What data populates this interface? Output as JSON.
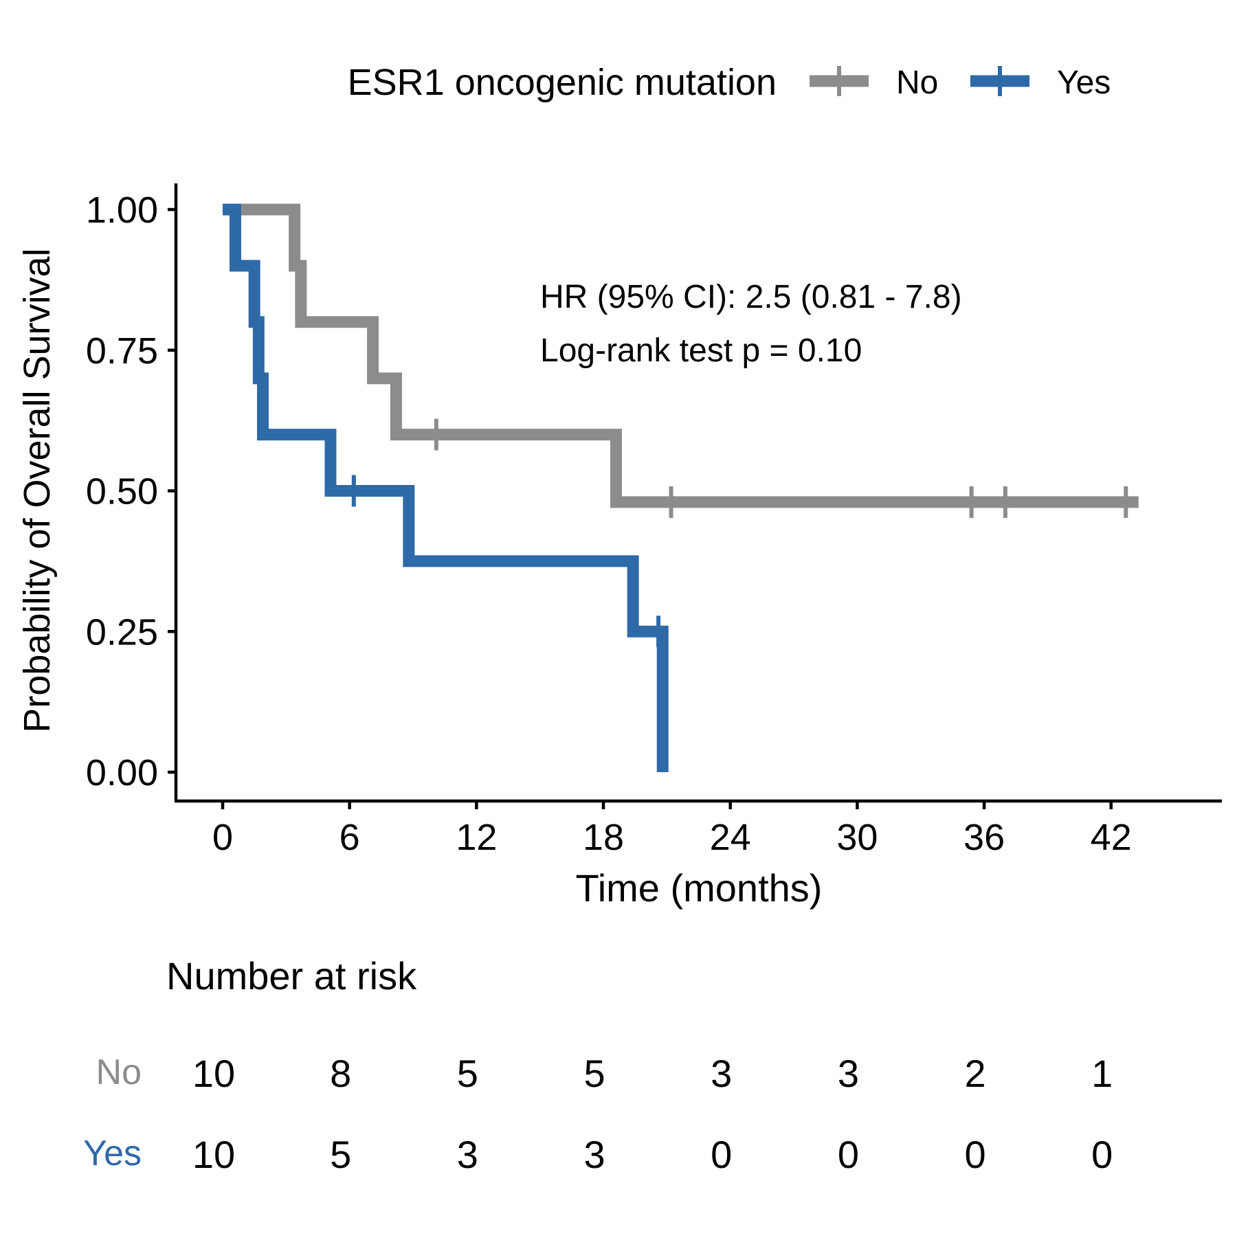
{
  "chart_data": {
    "type": "line",
    "subtype": "kaplan-meier",
    "title": "",
    "legend": {
      "title": "ESR1 oncogenic mutation",
      "position": "top",
      "entries": [
        "No",
        "Yes"
      ]
    },
    "xlabel": "Time (months)",
    "ylabel": "Probability of Overall Survival",
    "xlim": [
      -4.4,
      47.2
    ],
    "ylim": [
      -0.05,
      1.05
    ],
    "xticks": [
      0,
      6,
      12,
      18,
      24,
      30,
      36,
      42
    ],
    "xtick_labels": [
      "0",
      "6",
      "12",
      "18",
      "24",
      "30",
      "36",
      "42"
    ],
    "yticks": [
      0,
      0.25,
      0.5,
      0.75,
      1.0
    ],
    "ytick_labels": [
      "0.00",
      "0.25",
      "0.50",
      "0.75",
      "1.00"
    ],
    "grid": false,
    "annotations": [
      "HR (95% CI): 2.5 (0.81 - 7.8)",
      "Log-rank test p = 0.10"
    ],
    "series": [
      {
        "name": "No",
        "color": "#8c8c8c",
        "steps": [
          [
            0,
            1.0
          ],
          [
            3.4,
            0.9
          ],
          [
            3.7,
            0.8
          ],
          [
            7.1,
            0.7
          ],
          [
            8.2,
            0.6
          ],
          [
            18.6,
            0.48
          ],
          [
            43.3,
            0.48
          ]
        ],
        "censored": [
          [
            10.1,
            0.6
          ],
          [
            21.2,
            0.48
          ],
          [
            35.4,
            0.48
          ],
          [
            37.0,
            0.48
          ],
          [
            42.7,
            0.48
          ]
        ]
      },
      {
        "name": "Yes",
        "color": "#2e69a8",
        "steps": [
          [
            0,
            1.0
          ],
          [
            0.6,
            0.9
          ],
          [
            1.5,
            0.8
          ],
          [
            1.7,
            0.7
          ],
          [
            1.9,
            0.6
          ],
          [
            5.1,
            0.5
          ],
          [
            8.8,
            0.375
          ],
          [
            19.4,
            0.25
          ],
          [
            20.8,
            0.0
          ]
        ],
        "censored": [
          [
            6.2,
            0.5
          ],
          [
            20.6,
            0.25
          ]
        ]
      }
    ],
    "risk_table": {
      "title": "Number at risk",
      "times": [
        0,
        6,
        12,
        18,
        24,
        30,
        36,
        42
      ],
      "rows": [
        {
          "name": "No",
          "color": "#8c8c8c",
          "values": [
            "10",
            "8",
            "5",
            "5",
            "3",
            "3",
            "2",
            "1"
          ]
        },
        {
          "name": "Yes",
          "color": "#2e69a8",
          "values": [
            "10",
            "5",
            "3",
            "3",
            "0",
            "0",
            "0",
            "0"
          ]
        }
      ]
    }
  }
}
